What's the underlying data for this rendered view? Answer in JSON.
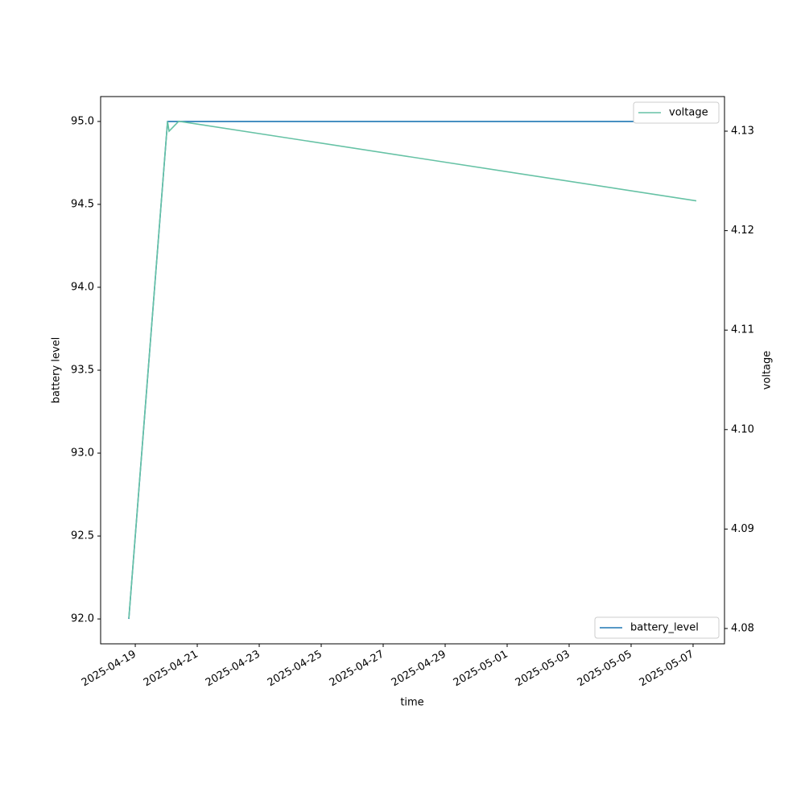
{
  "chart_data": {
    "type": "line",
    "x_label": "time",
    "y_label": "battery level",
    "y2_label": "voltage",
    "x": [
      "2025-04-18T19:00",
      "2025-04-20T01:00",
      "2025-04-20T02:10",
      "2025-04-20T09:40",
      "2025-05-07T02:30"
    ],
    "series": [
      {
        "name": "battery_level",
        "color": "#1f77b4",
        "values": [
          92.0,
          95.0,
          95.0,
          95.0,
          95.0
        ],
        "legend": "lower right"
      },
      {
        "name": "voltage",
        "color": "#66c2a5",
        "axis": "y2",
        "values": [
          4.081,
          4.131,
          4.13,
          4.131,
          4.123
        ],
        "legend": "upper right"
      }
    ],
    "xlim": [
      "2025-04-17T21:10",
      "2025-05-08T00:20"
    ],
    "xticks": [
      "2025-04-19",
      "2025-04-21",
      "2025-04-23",
      "2025-04-25",
      "2025-04-27",
      "2025-04-29",
      "2025-05-01",
      "2025-05-03",
      "2025-05-05",
      "2025-05-07"
    ],
    "ylim": [
      91.85,
      95.15
    ],
    "yticks": [
      {
        "value": 92,
        "label": "92.0"
      },
      92.5,
      {
        "value": 93,
        "label": "93.0"
      },
      93.5,
      {
        "value": 94,
        "label": "94.0"
      },
      94.5,
      {
        "value": 95,
        "label": "95.0"
      }
    ],
    "y2lim": [
      4.07846,
      4.13348
    ],
    "y2ticks": [
      4.08,
      4.09,
      {
        "value": 4.1,
        "label": "4.10"
      },
      4.11,
      4.12,
      4.13
    ],
    "grid": false
  }
}
